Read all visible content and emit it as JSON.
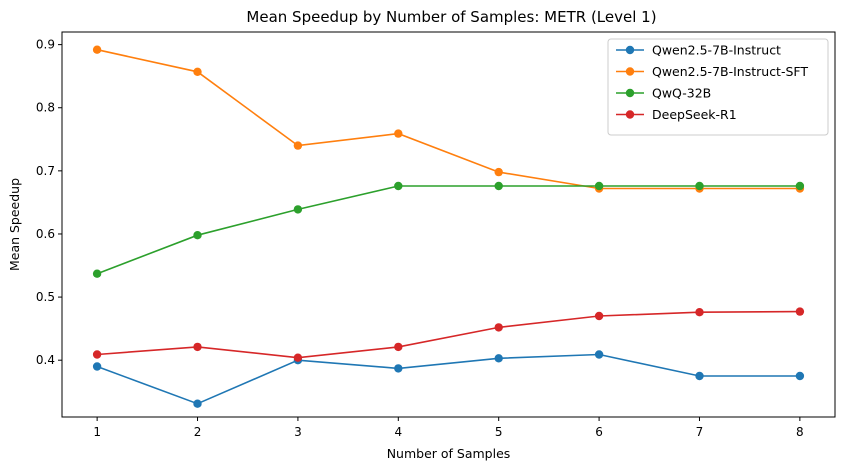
{
  "chart_data": {
    "type": "line",
    "title": "Mean Speedup by Number of Samples: METR (Level 1)",
    "xlabel": "Number of Samples",
    "ylabel": "Mean Speedup",
    "x": [
      1,
      2,
      3,
      4,
      5,
      6,
      7,
      8
    ],
    "xticks": [
      "1",
      "2",
      "3",
      "4",
      "5",
      "6",
      "7",
      "8"
    ],
    "yticks": [
      "0.4",
      "0.5",
      "0.6",
      "0.7",
      "0.8",
      "0.9"
    ],
    "xlim": [
      0.65,
      8.35
    ],
    "ylim": [
      0.31,
      0.92
    ],
    "grid": false,
    "legend_position": "top-right",
    "series": [
      {
        "name": "Qwen2.5-7B-Instruct",
        "color": "#1f77b4",
        "values": [
          0.39,
          0.331,
          0.4,
          0.387,
          0.403,
          0.409,
          0.375,
          0.375
        ]
      },
      {
        "name": "Qwen2.5-7B-Instruct-SFT",
        "color": "#ff7f0e",
        "values": [
          0.892,
          0.857,
          0.74,
          0.759,
          0.698,
          0.672,
          0.672,
          0.672
        ]
      },
      {
        "name": "QwQ-32B",
        "color": "#2ca02c",
        "values": [
          0.537,
          0.598,
          0.639,
          0.676,
          0.676,
          0.676,
          0.676,
          0.676
        ]
      },
      {
        "name": "DeepSeek-R1",
        "color": "#d62728",
        "values": [
          0.409,
          0.421,
          0.404,
          0.421,
          0.452,
          0.47,
          0.476,
          0.477
        ]
      }
    ]
  }
}
